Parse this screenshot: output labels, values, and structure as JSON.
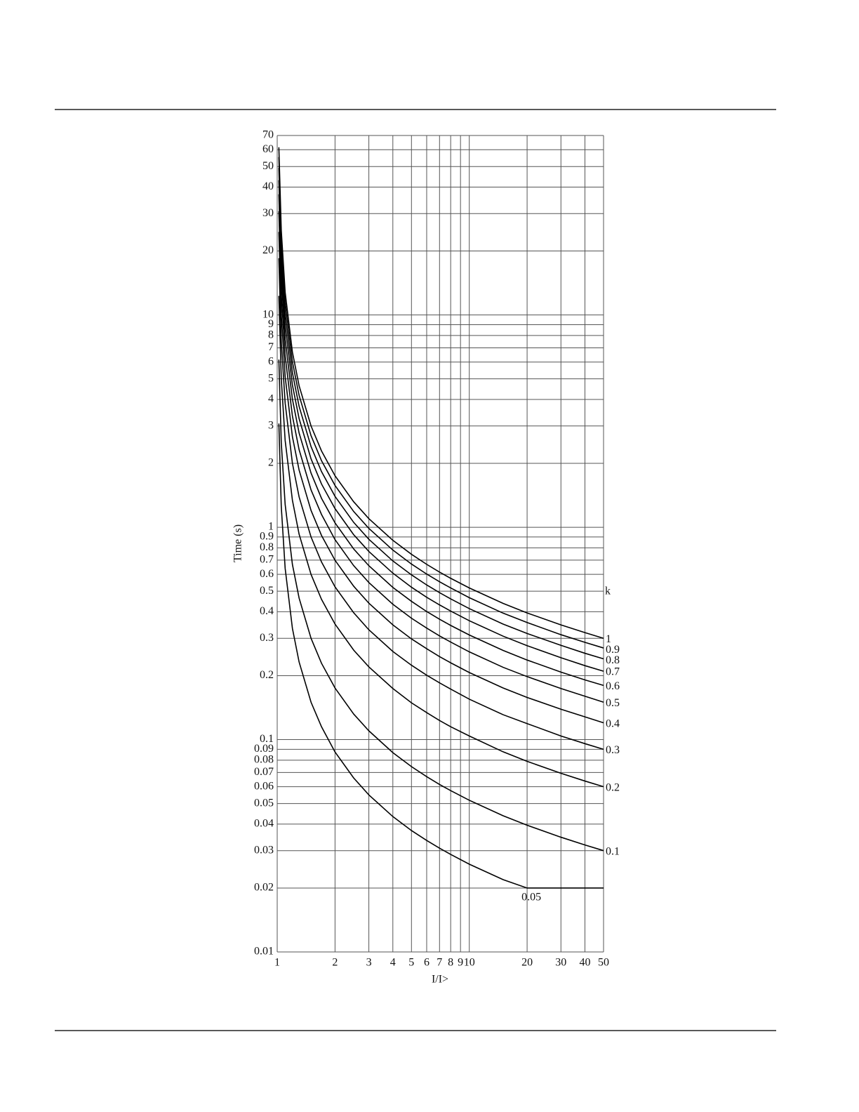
{
  "chart_data": {
    "type": "line",
    "y_label": "Time (s)",
    "x_label": "I/I>",
    "legend_title": "k",
    "log_x": true,
    "log_y": true,
    "grid": true,
    "line_color": "#000000",
    "xlim": [
      1,
      50
    ],
    "ylim": [
      0.01,
      70
    ],
    "xticks": [
      1,
      2,
      3,
      4,
      5,
      6,
      7,
      8,
      9,
      10,
      20,
      30,
      40,
      50
    ],
    "yticks": [
      0.01,
      0.02,
      0.03,
      0.04,
      0.05,
      0.06,
      0.07,
      0.08,
      0.09,
      0.1,
      0.2,
      0.3,
      0.4,
      0.5,
      0.6,
      0.7,
      0.8,
      0.9,
      1,
      2,
      3,
      4,
      5,
      6,
      7,
      8,
      9,
      10,
      20,
      30,
      40,
      50,
      60,
      70
    ],
    "x": [
      1.02,
      1.05,
      1.1,
      1.2,
      1.3,
      1.5,
      1.7,
      2,
      2.5,
      3,
      4,
      5,
      6,
      7,
      8,
      10,
      15,
      20,
      30,
      40,
      50
    ],
    "series": [
      {
        "name": "1",
        "values": [
          61.6,
          25.0,
          12.79,
          6.68,
          4.64,
          3.0,
          2.29,
          1.748,
          1.319,
          1.098,
          0.868,
          0.746,
          0.669,
          0.615,
          0.575,
          0.518,
          0.438,
          0.395,
          0.347,
          0.319,
          0.3
        ]
      },
      {
        "name": "0.9",
        "values": [
          55.4,
          22.5,
          11.5,
          6.01,
          4.18,
          2.7,
          2.06,
          1.573,
          1.187,
          0.988,
          0.781,
          0.671,
          0.602,
          0.554,
          0.518,
          0.466,
          0.394,
          0.356,
          0.312,
          0.287,
          0.27
        ]
      },
      {
        "name": "0.8",
        "values": [
          49.3,
          20.0,
          10.2,
          5.34,
          3.71,
          2.4,
          1.83,
          1.398,
          1.055,
          0.878,
          0.694,
          0.597,
          0.535,
          0.492,
          0.46,
          0.414,
          0.35,
          0.316,
          0.278,
          0.255,
          0.24
        ]
      },
      {
        "name": "0.7",
        "values": [
          43.1,
          17.5,
          8.95,
          4.68,
          3.25,
          2.1,
          1.6,
          1.224,
          0.923,
          0.769,
          0.608,
          0.522,
          0.468,
          0.431,
          0.403,
          0.363,
          0.307,
          0.277,
          0.243,
          0.223,
          0.21
        ]
      },
      {
        "name": "0.6",
        "values": [
          37.0,
          15.0,
          7.67,
          4.01,
          2.78,
          1.8,
          1.37,
          1.049,
          0.791,
          0.659,
          0.521,
          0.448,
          0.401,
          0.369,
          0.345,
          0.311,
          0.263,
          0.237,
          0.208,
          0.191,
          0.18
        ]
      },
      {
        "name": "0.5",
        "values": [
          30.8,
          12.5,
          6.4,
          3.34,
          2.32,
          1.5,
          1.15,
          0.874,
          0.66,
          0.549,
          0.434,
          0.373,
          0.335,
          0.308,
          0.288,
          0.259,
          0.219,
          0.198,
          0.174,
          0.16,
          0.15
        ]
      },
      {
        "name": "0.4",
        "values": [
          24.6,
          10.0,
          5.12,
          2.67,
          1.86,
          1.2,
          0.916,
          0.699,
          0.528,
          0.439,
          0.347,
          0.298,
          0.268,
          0.246,
          0.23,
          0.207,
          0.175,
          0.158,
          0.139,
          0.128,
          0.12
        ]
      },
      {
        "name": "0.3",
        "values": [
          18.5,
          7.5,
          3.84,
          2.0,
          1.39,
          0.9,
          0.687,
          0.524,
          0.396,
          0.329,
          0.26,
          0.224,
          0.201,
          0.185,
          0.173,
          0.155,
          0.131,
          0.119,
          0.104,
          0.0957,
          0.09
        ]
      },
      {
        "name": "0.2",
        "values": [
          12.3,
          5.0,
          2.56,
          1.34,
          0.928,
          0.6,
          0.458,
          0.35,
          0.264,
          0.22,
          0.174,
          0.149,
          0.134,
          0.123,
          0.115,
          0.104,
          0.0876,
          0.079,
          0.0694,
          0.0638,
          0.06
        ]
      },
      {
        "name": "0.1",
        "values": [
          6.16,
          2.5,
          1.28,
          0.668,
          0.464,
          0.3,
          0.229,
          0.175,
          0.132,
          0.11,
          0.0868,
          0.0746,
          0.0669,
          0.0615,
          0.0575,
          0.0518,
          0.0438,
          0.0395,
          0.0347,
          0.0319,
          0.03
        ]
      },
      {
        "name": "0.05",
        "values": [
          3.08,
          1.25,
          0.64,
          0.334,
          0.232,
          0.15,
          0.115,
          0.0874,
          0.066,
          0.0549,
          0.0434,
          0.0373,
          0.0335,
          0.0308,
          0.0288,
          0.0259,
          0.0219,
          0.02,
          0.02,
          0.02,
          0.02
        ]
      }
    ]
  }
}
